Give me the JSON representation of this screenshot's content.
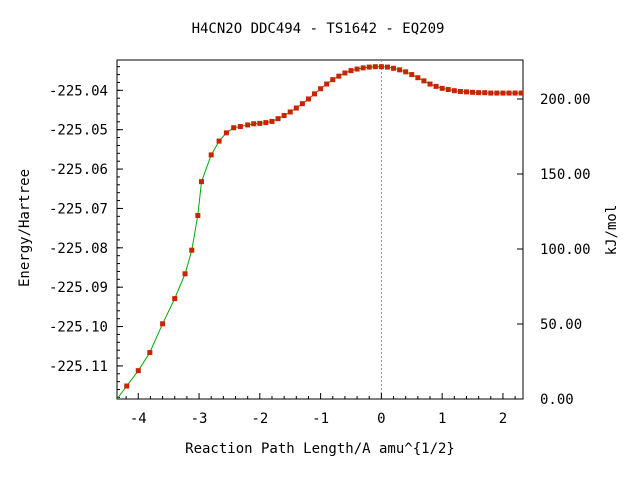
{
  "chart_data": {
    "type": "line",
    "title": "H4CN2O   DDC494 - TS1642 - EQ209",
    "xlabel": "Reaction Path Length/A amu^{1/2}",
    "ylabel": "Energy/Hartree",
    "y2label": "kJ/mol",
    "xlim": [
      -4.35,
      2.33
    ],
    "ylim": [
      -225.1184,
      -225.0323
    ],
    "y2lim": [
      0,
      226
    ],
    "xticks": [
      -4,
      -3,
      -2,
      -1,
      0,
      1,
      2
    ],
    "xtick_labels": [
      "-4",
      "-3",
      "-2",
      "-1",
      "0",
      "1",
      "2"
    ],
    "yticks": [
      -225.04,
      -225.05,
      -225.06,
      -225.07,
      -225.08,
      -225.09,
      -225.1,
      -225.11
    ],
    "ytick_labels": [
      "-225.04",
      "-225.05",
      "-225.06",
      "-225.07",
      "-225.08",
      "-225.09",
      "-225.10",
      "-225.11"
    ],
    "y2ticks": [
      0,
      50,
      100,
      150,
      200
    ],
    "y2tick_labels": [
      "0.00",
      "50.00",
      "100.00",
      "150.00",
      "200.00"
    ],
    "ts_marker_x": 0,
    "line_color": "#00aa00",
    "marker_color": "#cc2200",
    "series": [
      {
        "x": [
          -4.19,
          -4.0,
          -3.81,
          -3.6,
          -3.4,
          -3.23,
          -3.12,
          -3.02,
          -2.96,
          -2.8,
          -2.67,
          -2.55,
          -2.43,
          -2.32,
          -2.2,
          -2.1,
          -2.0,
          -1.9,
          -1.8,
          -1.7,
          -1.6,
          -1.5,
          -1.4,
          -1.3,
          -1.2,
          -1.1,
          -1.0,
          -0.9,
          -0.8,
          -0.7,
          -0.6,
          -0.5,
          -0.4,
          -0.3,
          -0.2,
          -0.1,
          0.0,
          0.1,
          0.2,
          0.3,
          0.4,
          0.5,
          0.6,
          0.7,
          0.8,
          0.9,
          1.0,
          1.1,
          1.2,
          1.3,
          1.4,
          1.5,
          1.6,
          1.7,
          1.8,
          1.9,
          2.0,
          2.1,
          2.2,
          2.3
        ],
        "y": [
          -225.1151,
          -225.1112,
          -225.1066,
          -225.0993,
          -225.0929,
          -225.0866,
          -225.0806,
          -225.0718,
          -225.0632,
          -225.0564,
          -225.0529,
          -225.0508,
          -225.0495,
          -225.0492,
          -225.0488,
          -225.0485,
          -225.0484,
          -225.0482,
          -225.0479,
          -225.0472,
          -225.0464,
          -225.0455,
          -225.0445,
          -225.0434,
          -225.0422,
          -225.0409,
          -225.0396,
          -225.0384,
          -225.0373,
          -225.0364,
          -225.0356,
          -225.035,
          -225.0346,
          -225.0343,
          -225.0341,
          -225.034,
          -225.034,
          -225.0341,
          -225.0344,
          -225.0348,
          -225.0353,
          -225.036,
          -225.0368,
          -225.0376,
          -225.0384,
          -225.039,
          -225.0395,
          -225.0398,
          -225.0401,
          -225.0403,
          -225.0404,
          -225.0405,
          -225.0406,
          -225.0406,
          -225.0407,
          -225.0407,
          -225.0407,
          -225.0407,
          -225.0407,
          -225.0407
        ]
      }
    ]
  }
}
